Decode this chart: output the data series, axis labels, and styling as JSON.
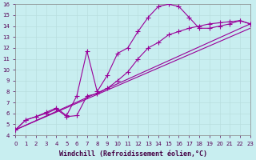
{
  "xlabel": "Windchill (Refroidissement éolien,°C)",
  "xlim": [
    0,
    23
  ],
  "ylim": [
    4,
    16
  ],
  "xticks": [
    0,
    1,
    2,
    3,
    4,
    5,
    6,
    7,
    8,
    9,
    10,
    11,
    12,
    13,
    14,
    15,
    16,
    17,
    18,
    19,
    20,
    21,
    22,
    23
  ],
  "yticks": [
    4,
    5,
    6,
    7,
    8,
    9,
    10,
    11,
    12,
    13,
    14,
    15,
    16
  ],
  "bg_color": "#c8eef0",
  "grid_color": "#b8dede",
  "line_color": "#990099",
  "line_width": 0.8,
  "marker": "+",
  "markersize": 4,
  "curve1": {
    "x": [
      0,
      1,
      2,
      3,
      4,
      5,
      6,
      7,
      8,
      9,
      10,
      11,
      12,
      13,
      14,
      15,
      16,
      17,
      18,
      19,
      20,
      21,
      22,
      23
    ],
    "y": [
      4.5,
      5.4,
      5.7,
      6.1,
      6.5,
      5.8,
      7.6,
      11.7,
      8.0,
      9.5,
      11.5,
      12.0,
      13.5,
      14.8,
      15.8,
      16.0,
      15.8,
      14.8,
      13.8,
      13.8,
      14.0,
      14.2,
      14.5,
      14.2
    ]
  },
  "curve2": {
    "x": [
      0,
      1,
      2,
      3,
      4,
      5,
      6,
      7,
      8,
      9,
      10,
      11,
      12,
      13,
      14,
      15,
      16,
      17,
      18,
      19,
      20,
      21,
      22,
      23
    ],
    "y": [
      4.5,
      5.4,
      5.7,
      6.0,
      6.4,
      5.7,
      5.8,
      7.6,
      7.8,
      8.3,
      9.0,
      9.8,
      11.0,
      12.0,
      12.5,
      13.2,
      13.5,
      13.8,
      14.0,
      14.2,
      14.3,
      14.4,
      14.5,
      14.2
    ]
  },
  "line1": {
    "x": [
      0,
      23
    ],
    "y": [
      4.5,
      14.2
    ]
  },
  "line2": {
    "x": [
      0,
      23
    ],
    "y": [
      4.5,
      13.8
    ]
  },
  "tick_fontsize": 5.0,
  "label_fontsize": 6.0
}
